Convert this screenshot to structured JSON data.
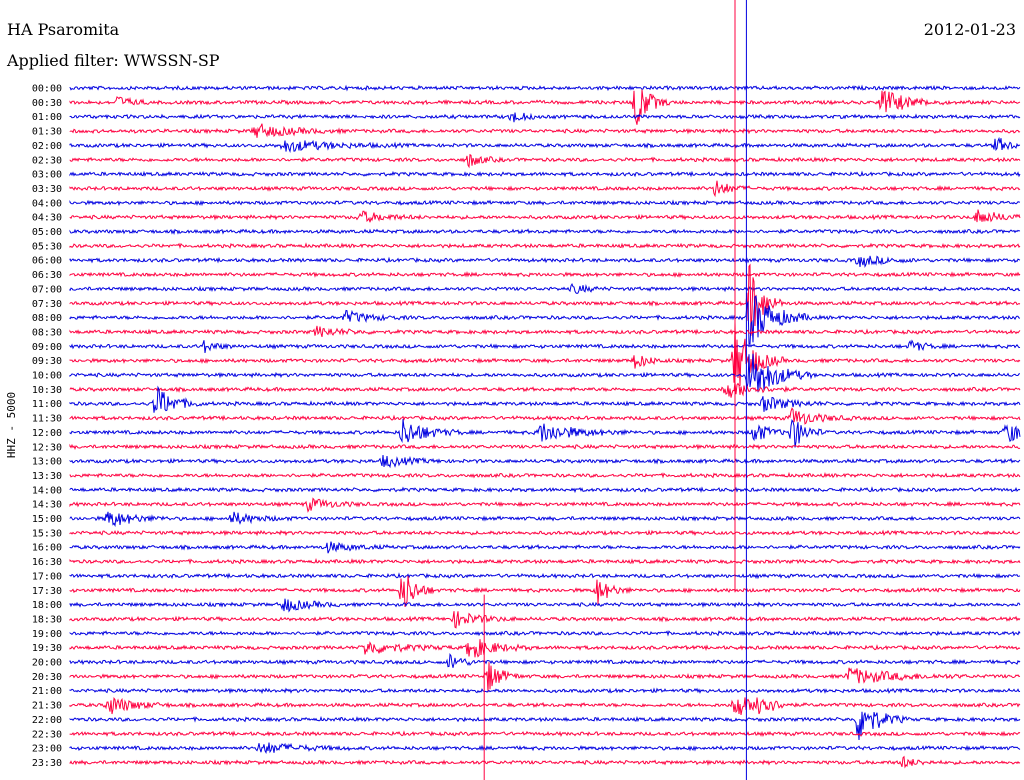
{
  "header": {
    "station": "HA Psaromita",
    "date": "2012-01-23",
    "filter": "Applied filter: WWSSN-SP"
  },
  "colors": {
    "odd": "#0000e0",
    "even": "#ff0040",
    "axis": "#000000",
    "background": "#ffffff"
  },
  "chart_data": {
    "type": "line",
    "ylabel": "HHZ - 5000",
    "row_labels": [
      "00:00",
      "00:30",
      "01:00",
      "01:30",
      "02:00",
      "02:30",
      "03:00",
      "03:30",
      "04:00",
      "04:30",
      "05:00",
      "05:30",
      "06:00",
      "06:30",
      "07:00",
      "07:30",
      "08:00",
      "08:30",
      "09:00",
      "09:30",
      "10:00",
      "10:30",
      "11:00",
      "11:30",
      "12:00",
      "12:30",
      "13:00",
      "13:30",
      "14:00",
      "14:30",
      "15:00",
      "15:30",
      "16:00",
      "16:30",
      "17:00",
      "17:30",
      "18:00",
      "18:30",
      "19:00",
      "19:30",
      "20:00",
      "20:30",
      "21:00",
      "21:30",
      "22:00",
      "22:30",
      "23:00",
      "23:30"
    ],
    "row_minutes": 30,
    "events": [
      {
        "row": 1,
        "t": 0.595,
        "amp": 28,
        "dur": 0.01
      },
      {
        "row": 1,
        "t": 0.855,
        "amp": 14,
        "dur": 0.02
      },
      {
        "row": 1,
        "t": 0.05,
        "amp": 6,
        "dur": 0.01
      },
      {
        "row": 2,
        "t": 0.465,
        "amp": 6,
        "dur": 0.01
      },
      {
        "row": 3,
        "t": 0.195,
        "amp": 7,
        "dur": 0.03
      },
      {
        "row": 4,
        "t": 0.225,
        "amp": 6,
        "dur": 0.04
      },
      {
        "row": 4,
        "t": 0.975,
        "amp": 8,
        "dur": 0.01
      },
      {
        "row": 5,
        "t": 0.42,
        "amp": 7,
        "dur": 0.01
      },
      {
        "row": 7,
        "t": 0.68,
        "amp": 9,
        "dur": 0.01
      },
      {
        "row": 9,
        "t": 0.305,
        "amp": 6,
        "dur": 0.02
      },
      {
        "row": 9,
        "t": 0.955,
        "amp": 7,
        "dur": 0.02
      },
      {
        "row": 12,
        "t": 0.83,
        "amp": 6,
        "dur": 0.02
      },
      {
        "row": 14,
        "t": 0.53,
        "amp": 5,
        "dur": 0.01
      },
      {
        "row": 15,
        "t": 0.715,
        "amp": 40,
        "dur": 0.01
      },
      {
        "row": 16,
        "t": 0.715,
        "amp": 30,
        "dur": 0.02
      },
      {
        "row": 16,
        "t": 0.29,
        "amp": 6,
        "dur": 0.02
      },
      {
        "row": 17,
        "t": 0.26,
        "amp": 5,
        "dur": 0.02
      },
      {
        "row": 18,
        "t": 0.14,
        "amp": 6,
        "dur": 0.01
      },
      {
        "row": 18,
        "t": 0.885,
        "amp": 6,
        "dur": 0.01
      },
      {
        "row": 19,
        "t": 0.7,
        "amp": 38,
        "dur": 0.015
      },
      {
        "row": 19,
        "t": 0.595,
        "amp": 8,
        "dur": 0.01
      },
      {
        "row": 20,
        "t": 0.715,
        "amp": 30,
        "dur": 0.02
      },
      {
        "row": 21,
        "t": 0.69,
        "amp": 10,
        "dur": 0.02
      },
      {
        "row": 22,
        "t": 0.09,
        "amp": 18,
        "dur": 0.015
      },
      {
        "row": 22,
        "t": 0.73,
        "amp": 8,
        "dur": 0.02
      },
      {
        "row": 23,
        "t": 0.76,
        "amp": 9,
        "dur": 0.02
      },
      {
        "row": 24,
        "t": 0.35,
        "amp": 14,
        "dur": 0.02
      },
      {
        "row": 24,
        "t": 0.495,
        "amp": 10,
        "dur": 0.03
      },
      {
        "row": 24,
        "t": 0.72,
        "amp": 12,
        "dur": 0.01
      },
      {
        "row": 24,
        "t": 0.76,
        "amp": 18,
        "dur": 0.01
      },
      {
        "row": 24,
        "t": 0.985,
        "amp": 10,
        "dur": 0.02
      },
      {
        "row": 26,
        "t": 0.33,
        "amp": 6,
        "dur": 0.02
      },
      {
        "row": 29,
        "t": 0.25,
        "amp": 6,
        "dur": 0.02
      },
      {
        "row": 30,
        "t": 0.04,
        "amp": 9,
        "dur": 0.02
      },
      {
        "row": 30,
        "t": 0.17,
        "amp": 6,
        "dur": 0.02
      },
      {
        "row": 32,
        "t": 0.27,
        "amp": 5,
        "dur": 0.02
      },
      {
        "row": 35,
        "t": 0.35,
        "amp": 24,
        "dur": 0.01
      },
      {
        "row": 35,
        "t": 0.555,
        "amp": 14,
        "dur": 0.01
      },
      {
        "row": 36,
        "t": 0.225,
        "amp": 7,
        "dur": 0.02
      },
      {
        "row": 37,
        "t": 0.405,
        "amp": 8,
        "dur": 0.02
      },
      {
        "row": 39,
        "t": 0.42,
        "amp": 12,
        "dur": 0.02
      },
      {
        "row": 39,
        "t": 0.31,
        "amp": 7,
        "dur": 0.03
      },
      {
        "row": 40,
        "t": 0.4,
        "amp": 8,
        "dur": 0.01
      },
      {
        "row": 41,
        "t": 0.44,
        "amp": 16,
        "dur": 0.01
      },
      {
        "row": 41,
        "t": 0.82,
        "amp": 8,
        "dur": 0.04
      },
      {
        "row": 43,
        "t": 0.04,
        "amp": 10,
        "dur": 0.02
      },
      {
        "row": 43,
        "t": 0.7,
        "amp": 16,
        "dur": 0.01
      },
      {
        "row": 43,
        "t": 0.725,
        "amp": 16,
        "dur": 0.01
      },
      {
        "row": 44,
        "t": 0.83,
        "amp": 24,
        "dur": 0.015
      },
      {
        "row": 46,
        "t": 0.2,
        "amp": 6,
        "dur": 0.03
      },
      {
        "row": 47,
        "t": 0.875,
        "amp": 6,
        "dur": 0.01
      }
    ],
    "markers": [
      {
        "color": "even",
        "t": 0.7,
        "row_start": 0,
        "row_end": 36
      },
      {
        "color": "odd",
        "t": 0.712,
        "row_start": 0,
        "row_end": 48
      },
      {
        "color": "even",
        "t": 0.436,
        "row_start": 36,
        "row_end": 48
      }
    ]
  }
}
